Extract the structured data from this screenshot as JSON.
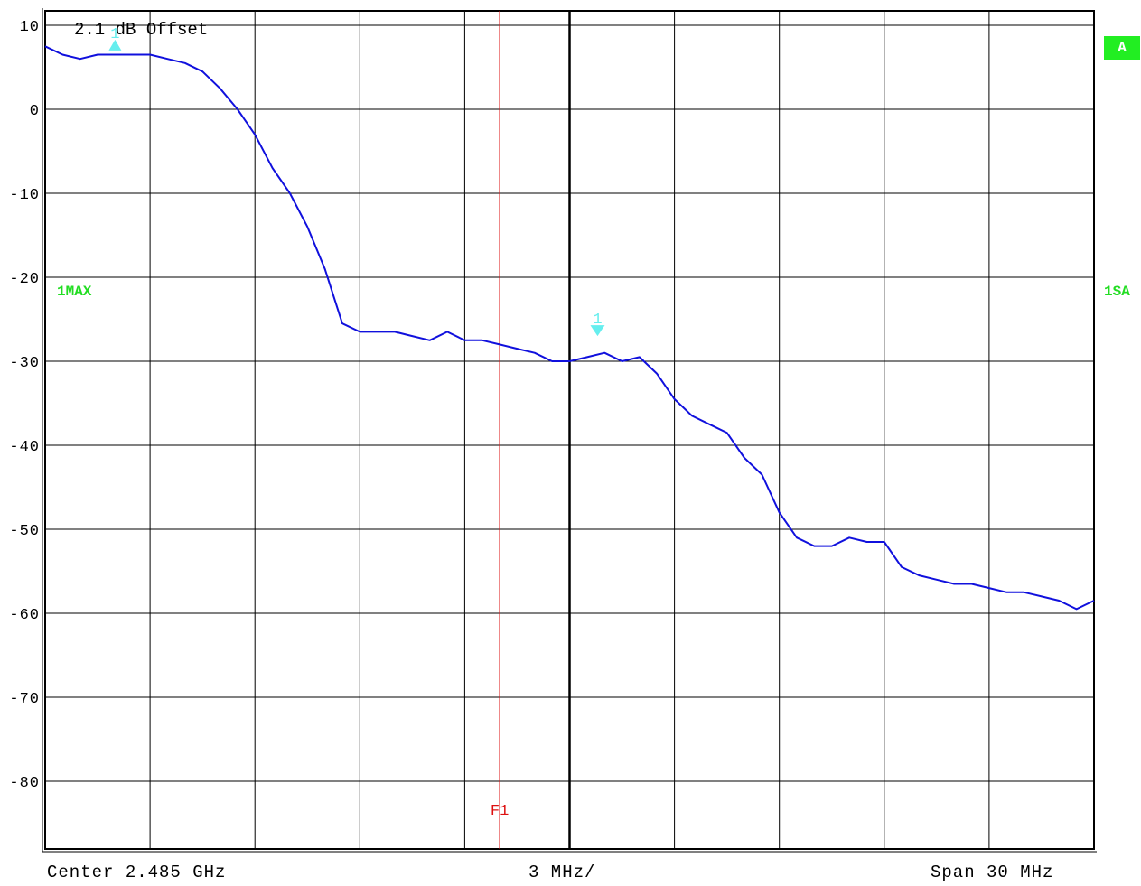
{
  "colors": {
    "trace": "#1010dd",
    "grid": "#000000",
    "marker": "#66eeee",
    "display_line": "#dd1010",
    "status_green": "#22ee22"
  },
  "header": {
    "offset_text": "2.1 dB Offset"
  },
  "status": {
    "badge": "A",
    "trace_mode": "1MAX",
    "sweep_mode": "1SA"
  },
  "markers": [
    {
      "label": "1",
      "direction": "up",
      "freq_offset_mhz": -13.0,
      "level_db": 7
    },
    {
      "label": "1",
      "direction": "down",
      "freq_offset_mhz": 0.8,
      "level_db": -27
    }
  ],
  "display_line": {
    "label": "F1",
    "freq_offset_mhz": -2.0
  },
  "footer": {
    "center": "Center 2.485 GHz",
    "div": "3 MHz/",
    "span": "Span 30 MHz"
  },
  "chart_data": {
    "type": "line",
    "title": "",
    "xlabel": "",
    "ylabel": "",
    "x_unit": "MHz offset from center",
    "xlim": [
      -15,
      15
    ],
    "ylim": [
      -90,
      10
    ],
    "y_ticks": [
      10,
      0,
      -10,
      -20,
      -30,
      -40,
      -50,
      -60,
      -70,
      -80
    ],
    "x_divisions": 10,
    "grid": true,
    "series": [
      {
        "x": [
          -15.0,
          -14.5,
          -14.0,
          -13.5,
          -13.0,
          -12.5,
          -12.0,
          -11.5,
          -11.0,
          -10.5,
          -10.0,
          -9.5,
          -9.0,
          -8.5,
          -8.0,
          -7.5,
          -7.0,
          -6.5,
          -6.0,
          -5.5,
          -5.0,
          -4.5,
          -4.0,
          -3.5,
          -3.0,
          -2.5,
          -2.0,
          -1.5,
          -1.0,
          -0.5,
          0.0,
          0.5,
          1.0,
          1.5,
          2.0,
          2.5,
          3.0,
          3.5,
          4.0,
          4.5,
          5.0,
          5.5,
          6.0,
          6.5,
          7.0,
          7.5,
          8.0,
          8.5,
          9.0,
          9.5,
          10.0,
          10.5,
          11.0,
          11.5,
          12.0,
          12.5,
          13.0,
          13.5,
          14.0,
          14.5,
          15.0
        ],
        "values": [
          7.5,
          6.5,
          6.0,
          6.5,
          6.5,
          6.5,
          6.5,
          6.0,
          5.5,
          4.5,
          2.5,
          0.0,
          -3.0,
          -7.0,
          -10.0,
          -14.0,
          -19.0,
          -25.5,
          -26.5,
          -26.5,
          -26.5,
          -27.0,
          -27.5,
          -26.5,
          -27.5,
          -27.5,
          -28.0,
          -28.5,
          -29.0,
          -30.0,
          -30.0,
          -29.5,
          -29.0,
          -30.0,
          -29.5,
          -31.5,
          -34.5,
          -36.5,
          -37.5,
          -38.5,
          -41.5,
          -43.5,
          -48.0,
          -51.0,
          -52.0,
          -52.0,
          -51.0,
          -51.5,
          -51.5,
          -54.5,
          -55.5,
          -56.0,
          -56.5,
          -56.5,
          -57.0,
          -57.5,
          -57.5,
          -58.0,
          -58.5,
          -59.5,
          -58.5
        ]
      }
    ]
  }
}
